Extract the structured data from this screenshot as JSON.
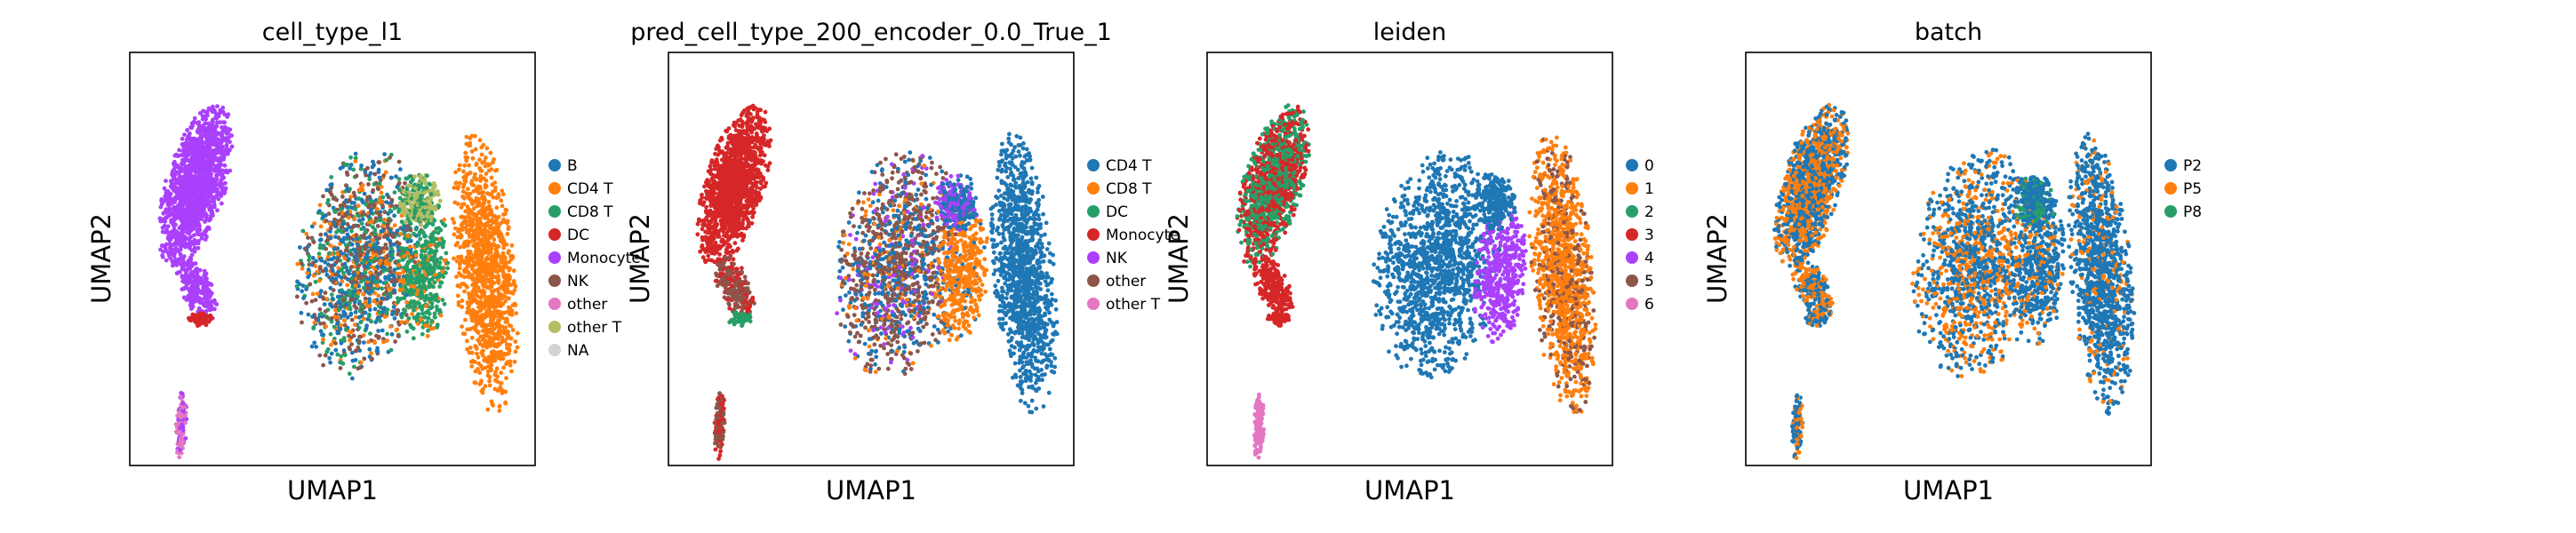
{
  "colors": {
    "c0": "#1f77b4",
    "c1": "#ff7f0e",
    "c2": "#279e68",
    "c3": "#d62728",
    "c4": "#aa40fc",
    "c5": "#8c564b",
    "c6": "#e377c2",
    "c7": "#b5bd61",
    "na": "#d3d3d3"
  },
  "chart_data": [
    {
      "type": "scatter",
      "title": "cell_type_l1",
      "xlabel": "UMAP1",
      "ylabel": "UMAP2",
      "legend_position": "right",
      "legend": [
        {
          "label": "B",
          "color": "#1f77b4"
        },
        {
          "label": "CD4 T",
          "color": "#ff7f0e"
        },
        {
          "label": "CD8 T",
          "color": "#279e68"
        },
        {
          "label": "DC",
          "color": "#d62728"
        },
        {
          "label": "Monocyte",
          "color": "#aa40fc"
        },
        {
          "label": "NK",
          "color": "#8c564b"
        },
        {
          "label": "other",
          "color": "#e377c2"
        },
        {
          "label": "other T",
          "color": "#b5bd61"
        },
        {
          "label": "NA",
          "color": "#d3d3d3"
        }
      ]
    },
    {
      "type": "scatter",
      "title": "pred_cell_type_200_encoder_0.0_True_1",
      "xlabel": "UMAP1",
      "ylabel": "UMAP2",
      "legend_position": "right",
      "legend": [
        {
          "label": "CD4 T",
          "color": "#1f77b4"
        },
        {
          "label": "CD8 T",
          "color": "#ff7f0e"
        },
        {
          "label": "DC",
          "color": "#279e68"
        },
        {
          "label": "Monocyte",
          "color": "#d62728"
        },
        {
          "label": "NK",
          "color": "#aa40fc"
        },
        {
          "label": "other",
          "color": "#8c564b"
        },
        {
          "label": "other T",
          "color": "#e377c2"
        }
      ]
    },
    {
      "type": "scatter",
      "title": "leiden",
      "xlabel": "UMAP1",
      "ylabel": "UMAP2",
      "legend_position": "right",
      "legend": [
        {
          "label": "0",
          "color": "#1f77b4"
        },
        {
          "label": "1",
          "color": "#ff7f0e"
        },
        {
          "label": "2",
          "color": "#279e68"
        },
        {
          "label": "3",
          "color": "#d62728"
        },
        {
          "label": "4",
          "color": "#aa40fc"
        },
        {
          "label": "5",
          "color": "#8c564b"
        },
        {
          "label": "6",
          "color": "#e377c2"
        }
      ]
    },
    {
      "type": "scatter",
      "title": "batch",
      "xlabel": "UMAP1",
      "ylabel": "UMAP2",
      "legend_position": "right",
      "legend": [
        {
          "label": "P2",
          "color": "#1f77b4"
        },
        {
          "label": "P5",
          "color": "#ff7f0e"
        },
        {
          "label": "P8",
          "color": "#279e68"
        }
      ]
    }
  ]
}
